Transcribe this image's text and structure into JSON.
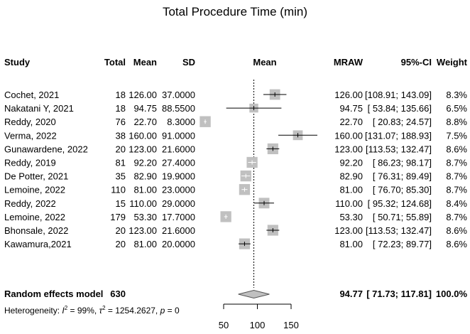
{
  "title": "Total Procedure Time (min)",
  "columns": {
    "study": "Study",
    "total": "Total",
    "mean": "Mean",
    "sd": "SD",
    "plot_mean": "Mean",
    "mraw": "MRAW",
    "ci": "95%-CI",
    "weight": "Weight"
  },
  "studies": [
    {
      "study": "Cochet, 2021",
      "total": "18",
      "mean": "126.00",
      "sd": "37.0000",
      "mraw": "126.00",
      "ci": "[108.91; 143.09]",
      "weight": "8.3%"
    },
    {
      "study": "Nakatani Y, 2021",
      "total": "18",
      "mean": "94.75",
      "sd": "88.5500",
      "mraw": "94.75",
      "ci": "[ 53.84; 135.66]",
      "weight": "6.5%"
    },
    {
      "study": "Reddy, 2020",
      "total": "76",
      "mean": "22.70",
      "sd": "8.3000",
      "mraw": "22.70",
      "ci": "[ 20.83; 24.57]",
      "weight": "8.8%"
    },
    {
      "study": "Verma, 2022",
      "total": "38",
      "mean": "160.00",
      "sd": "91.0000",
      "mraw": "160.00",
      "ci": "[131.07; 188.93]",
      "weight": "7.5%"
    },
    {
      "study": "Gunawardene, 2022",
      "total": "20",
      "mean": "123.00",
      "sd": "21.6000",
      "mraw": "123.00",
      "ci": "[113.53; 132.47]",
      "weight": "8.6%"
    },
    {
      "study": "Reddy, 2019",
      "total": "81",
      "mean": "92.20",
      "sd": "27.4000",
      "mraw": "92.20",
      "ci": "[ 86.23; 98.17]",
      "weight": "8.7%"
    },
    {
      "study": "De Potter, 2021",
      "total": "35",
      "mean": "82.90",
      "sd": "19.9000",
      "mraw": "82.90",
      "ci": "[ 76.31; 89.49]",
      "weight": "8.7%"
    },
    {
      "study": "Lemoine, 2022",
      "total": "110",
      "mean": "81.00",
      "sd": "23.0000",
      "mraw": "81.00",
      "ci": "[ 76.70; 85.30]",
      "weight": "8.7%"
    },
    {
      "study": "Reddy, 2022",
      "total": "15",
      "mean": "110.00",
      "sd": "29.0000",
      "mraw": "110.00",
      "ci": "[ 95.32; 124.68]",
      "weight": "8.4%"
    },
    {
      "study": "Lemoine, 2022",
      "total": "179",
      "mean": "53.30",
      "sd": "17.7000",
      "mraw": "53.30",
      "ci": "[ 50.71; 55.89]",
      "weight": "8.7%"
    },
    {
      "study": "Bhonsale, 2022",
      "total": "20",
      "mean": "123.00",
      "sd": "21.6000",
      "mraw": "123.00",
      "ci": "[113.53; 132.47]",
      "weight": "8.6%"
    },
    {
      "study": "Kawamura,2021",
      "total": "20",
      "mean": "81.00",
      "sd": "20.0000",
      "mraw": "81.00",
      "ci": "[ 72.23; 89.77]",
      "weight": "8.6%"
    }
  ],
  "summary": {
    "label": "Random effects model",
    "total": "630",
    "mraw": "94.77",
    "ci": "[ 71.73; 117.81]",
    "weight": "100.0%"
  },
  "heterogeneity": {
    "prefix": "Heterogeneity: ",
    "i2_symbol": "I",
    "i2_sup": "2",
    "i2_value": " = 99%, ",
    "tau_symbol": "τ",
    "tau_sup": "2",
    "tau_value": " = 1254.2627, ",
    "p_symbol": "p",
    "p_value": " = 0"
  },
  "colors": {
    "square": "#c0c0c0",
    "diamond": "#c0c0c0",
    "line": "#000000"
  },
  "chart_data": {
    "type": "forest",
    "x": {
      "ticks": [
        50,
        100,
        150
      ]
    },
    "points": [
      {
        "study": "Cochet, 2021",
        "est": 126.0,
        "lo": 108.91,
        "hi": 143.09,
        "weight": 8.3
      },
      {
        "study": "Nakatani Y, 2021",
        "est": 94.75,
        "lo": 53.84,
        "hi": 135.66,
        "weight": 6.5
      },
      {
        "study": "Reddy, 2020",
        "est": 22.7,
        "lo": 20.83,
        "hi": 24.57,
        "weight": 8.8
      },
      {
        "study": "Verma, 2022",
        "est": 160.0,
        "lo": 131.07,
        "hi": 188.93,
        "weight": 7.5
      },
      {
        "study": "Gunawardene, 2022",
        "est": 123.0,
        "lo": 113.53,
        "hi": 132.47,
        "weight": 8.6
      },
      {
        "study": "Reddy, 2019",
        "est": 92.2,
        "lo": 86.23,
        "hi": 98.17,
        "weight": 8.7
      },
      {
        "study": "De Potter, 2021",
        "est": 82.9,
        "lo": 76.31,
        "hi": 89.49,
        "weight": 8.7
      },
      {
        "study": "Lemoine, 2022",
        "est": 81.0,
        "lo": 76.7,
        "hi": 85.3,
        "weight": 8.7
      },
      {
        "study": "Reddy, 2022",
        "est": 110.0,
        "lo": 95.32,
        "hi": 124.68,
        "weight": 8.4
      },
      {
        "study": "Lemoine, 2022",
        "est": 53.3,
        "lo": 50.71,
        "hi": 55.89,
        "weight": 8.7
      },
      {
        "study": "Bhonsale, 2022",
        "est": 123.0,
        "lo": 113.53,
        "hi": 132.47,
        "weight": 8.6
      },
      {
        "study": "Kawamura,2021",
        "est": 81.0,
        "lo": 72.23,
        "hi": 89.77,
        "weight": 8.6
      }
    ],
    "pooled": {
      "est": 94.77,
      "lo": 71.73,
      "hi": 117.81
    }
  }
}
